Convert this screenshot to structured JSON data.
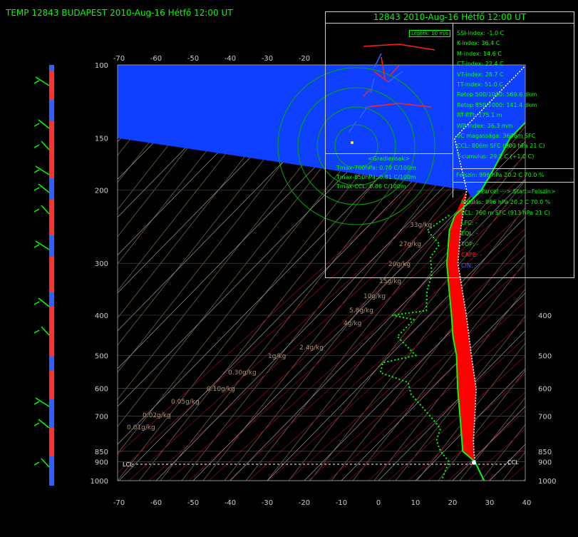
{
  "header": {
    "title": "TEMP  12843 BUDAPEST  2010-Aug-16 Hétfő 12:00 UT"
  },
  "hodograph": {
    "title": "12843  2010-Aug-16 Hétfő 12:00 UT",
    "scale_label": "Lépték: 10 m/s"
  },
  "indices": [
    "SSI-index:  -1.0 C",
    "K-index:  36.4 C",
    "M-index:  14.6 C",
    "CT-index:  22.4 C",
    "VT-index:  28.7 C",
    "TT-index:  51.0 C",
    "Retop 500/1000:  569.6 dkm",
    "Retop 850/1000:  141.4 dkm",
    "RT-RTt:  175.1 m",
    "WP-index:  36.3 mm",
    "0C magassága:  3646m SFC",
    "CCL:  806m SFC (900 hPa 21 C)",
    "T-cumulus:  29.2 C (+1.0 C)"
  ],
  "gradients": {
    "title": "<Gradiensek>",
    "lines": [
      "Tmax-700hPa:  0.79 C/100m",
      "Tmax-850hPa:  0.81 C/100m",
      "Tmax-CCL:  0.86 C/100m"
    ]
  },
  "surface": "Felszín: 996 hPa  20.2 C  70.0 %",
  "parcel": {
    "title": "<Parcel ---> Start=Felszín>",
    "lines": [
      "Indulás: 996 hPa  20.2 C  70.0 %",
      "LCL: 760 m SFC (913 hPa 21 C)",
      "LFC:  -",
      "EQL:  -",
      "TOP:  -"
    ],
    "cape": "CAPE:  -",
    "cin": "CIN:  -"
  },
  "chart_data": {
    "type": "line",
    "subtype": "skew-T log-p diagram",
    "x_ticks": [
      "-70",
      "-60",
      "-50",
      "-40",
      "-30",
      "-20",
      "-10",
      "0",
      "10",
      "20",
      "30",
      "40"
    ],
    "top_ticks": [
      "-70",
      "-60",
      "-50",
      "-40",
      "-30",
      "-20"
    ],
    "y_ticks": [
      {
        "p": 100,
        "label": "100"
      },
      {
        "p": 150,
        "label": "150"
      },
      {
        "p": 200,
        "label": "200"
      },
      {
        "p": 300,
        "label": "300"
      },
      {
        "p": 400,
        "label": "400"
      },
      {
        "p": 500,
        "label": "500"
      },
      {
        "p": 600,
        "label": "600"
      },
      {
        "p": 700,
        "label": "700"
      },
      {
        "p": 850,
        "label": "850"
      },
      {
        "p": 900,
        "label": "900"
      },
      {
        "p": 1000,
        "label": "1000"
      }
    ],
    "right_ticks": [
      {
        "p": 400,
        "label": "400"
      },
      {
        "p": 500,
        "label": "500"
      },
      {
        "p": 600,
        "label": "600"
      },
      {
        "p": 700,
        "label": "700"
      },
      {
        "p": 850,
        "label": "850"
      },
      {
        "p": 900,
        "label": "900"
      },
      {
        "p": 1000,
        "label": "1000"
      }
    ],
    "xlim": [
      -70,
      40
    ],
    "ylim_hpa": [
      1000,
      100
    ],
    "lcl_label": "LCL",
    "ccl_label": "CCL",
    "mixing_ratio_labels": [
      "33g/kg",
      "27g/kg",
      "20g/kg",
      "15g/kg",
      "10g/kg",
      "5.8g/kg",
      "4g/kg",
      "2.4g/kg",
      "1g/kg",
      "0.30g/kg",
      "0.10g/kg",
      "0.05g/kg",
      "0.02g/kg",
      "0.01g/kg"
    ],
    "series": [
      {
        "name": "temperature",
        "color": "#00ff00",
        "points": [
          {
            "p": 100,
            "x": -59
          },
          {
            "p": 120,
            "x": -56
          },
          {
            "p": 130,
            "x": -55
          },
          {
            "p": 150,
            "x": -55
          },
          {
            "p": 180,
            "x": -51
          },
          {
            "p": 200,
            "x": -49
          },
          {
            "p": 210,
            "x": -49
          },
          {
            "p": 230,
            "x": -49.5
          },
          {
            "p": 250,
            "x": -47
          },
          {
            "p": 300,
            "x": -39
          },
          {
            "p": 350,
            "x": -31
          },
          {
            "p": 400,
            "x": -24
          },
          {
            "p": 450,
            "x": -18
          },
          {
            "p": 500,
            "x": -12
          },
          {
            "p": 600,
            "x": -3
          },
          {
            "p": 700,
            "x": 5
          },
          {
            "p": 850,
            "x": 15
          },
          {
            "p": 900,
            "x": 21
          },
          {
            "p": 1000,
            "x": 28.5
          }
        ]
      },
      {
        "name": "dewpoint",
        "color": "#00ff00",
        "style": "dotted",
        "points": [
          {
            "p": 230,
            "x": -51
          },
          {
            "p": 250,
            "x": -53
          },
          {
            "p": 270,
            "x": -46
          },
          {
            "p": 290,
            "x": -45
          },
          {
            "p": 320,
            "x": -40
          },
          {
            "p": 350,
            "x": -37
          },
          {
            "p": 390,
            "x": -32
          },
          {
            "p": 400,
            "x": -40
          },
          {
            "p": 410,
            "x": -33
          },
          {
            "p": 450,
            "x": -33
          },
          {
            "p": 500,
            "x": -23
          },
          {
            "p": 520,
            "x": -30
          },
          {
            "p": 550,
            "x": -28
          },
          {
            "p": 580,
            "x": -18
          },
          {
            "p": 620,
            "x": -14
          },
          {
            "p": 700,
            "x": -3
          },
          {
            "p": 750,
            "x": 3
          },
          {
            "p": 800,
            "x": 5
          },
          {
            "p": 850,
            "x": 9
          },
          {
            "p": 900,
            "x": 14
          },
          {
            "p": 1000,
            "x": 17
          }
        ]
      },
      {
        "name": "parcel",
        "color": "#ffffff",
        "style": "dotted",
        "points": [
          {
            "p": 100,
            "x": -70
          },
          {
            "p": 150,
            "x": -70
          },
          {
            "p": 200,
            "x": -53
          },
          {
            "p": 250,
            "x": -44
          },
          {
            "p": 300,
            "x": -36
          },
          {
            "p": 400,
            "x": -20
          },
          {
            "p": 500,
            "x": -8
          },
          {
            "p": 600,
            "x": 2
          },
          {
            "p": 700,
            "x": 9
          },
          {
            "p": 800,
            "x": 15
          },
          {
            "p": 850,
            "x": 18
          },
          {
            "p": 900,
            "x": 21
          },
          {
            "p": 1000,
            "x": 28.5
          }
        ]
      }
    ]
  }
}
